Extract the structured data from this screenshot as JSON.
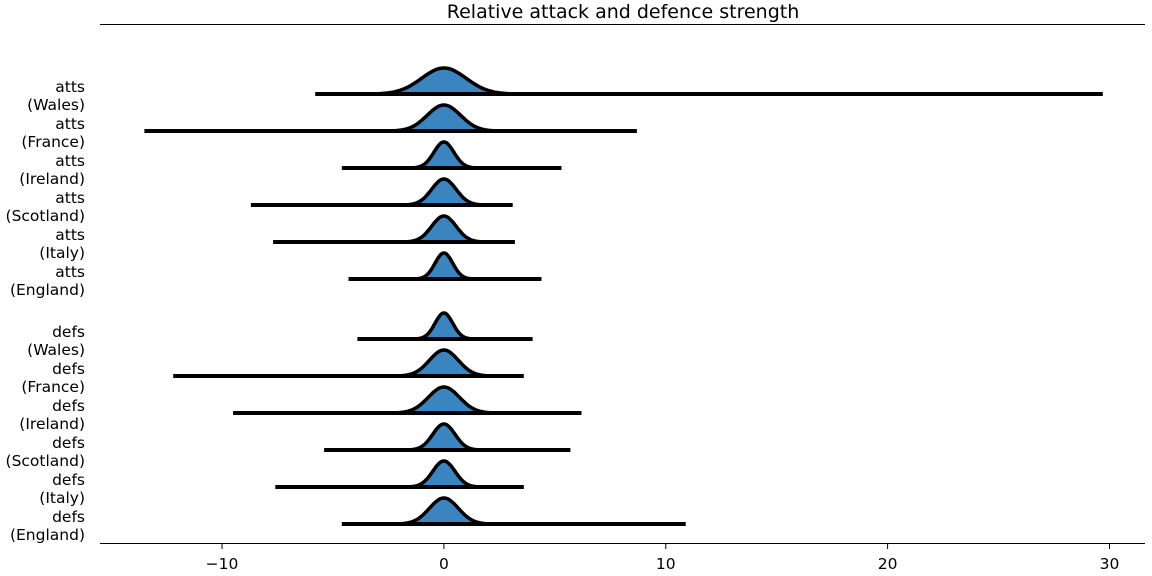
{
  "chart_data": {
    "type": "ridgeline",
    "title": "Relative attack and defence strength",
    "xlabel": "",
    "ylabel": "",
    "xlim": [
      -15.5,
      31.6
    ],
    "xticks": [
      -10,
      0,
      10,
      20,
      30
    ],
    "xtick_labels": [
      "−10",
      "0",
      "10",
      "20",
      "30"
    ],
    "grid": false,
    "fill_color": "#3a84bf",
    "line_color": "#000000",
    "groups": [
      {
        "name": "atts",
        "rows": [
          {
            "label": [
              "atts",
              "(Wales)"
            ],
            "range": [
              -5.8,
              29.7
            ],
            "peak": 0.0,
            "spread": 1.0
          },
          {
            "label": [
              "atts",
              "(France)"
            ],
            "range": [
              -13.5,
              8.7
            ],
            "peak": 0.0,
            "spread": 0.75
          },
          {
            "label": [
              "atts",
              "(Ireland)"
            ],
            "range": [
              -4.6,
              5.3
            ],
            "peak": 0.0,
            "spread": 0.45
          },
          {
            "label": [
              "atts",
              "(Scotland)"
            ],
            "range": [
              -8.7,
              3.1
            ],
            "peak": 0.0,
            "spread": 0.55
          },
          {
            "label": [
              "atts",
              "(Italy)"
            ],
            "range": [
              -7.7,
              3.2
            ],
            "peak": 0.0,
            "spread": 0.55
          },
          {
            "label": [
              "atts",
              "(England)"
            ],
            "range": [
              -4.3,
              4.4
            ],
            "peak": 0.0,
            "spread": 0.4
          }
        ]
      },
      {
        "name": "defs",
        "rows": [
          {
            "label": [
              "defs",
              "(Wales)"
            ],
            "range": [
              -3.9,
              4.0
            ],
            "peak": 0.0,
            "spread": 0.4
          },
          {
            "label": [
              "defs",
              "(France)"
            ],
            "range": [
              -12.2,
              3.6
            ],
            "peak": 0.0,
            "spread": 0.65
          },
          {
            "label": [
              "defs",
              "(Ireland)"
            ],
            "range": [
              -9.5,
              6.2
            ],
            "peak": 0.0,
            "spread": 0.7
          },
          {
            "label": [
              "defs",
              "(Scotland)"
            ],
            "range": [
              -5.4,
              5.7
            ],
            "peak": 0.0,
            "spread": 0.5
          },
          {
            "label": [
              "defs",
              "(Italy)"
            ],
            "range": [
              -7.6,
              3.6
            ],
            "peak": 0.0,
            "spread": 0.5
          },
          {
            "label": [
              "defs",
              "(England)"
            ],
            "range": [
              -4.6,
              10.9
            ],
            "peak": 0.0,
            "spread": 0.65
          }
        ]
      }
    ]
  }
}
